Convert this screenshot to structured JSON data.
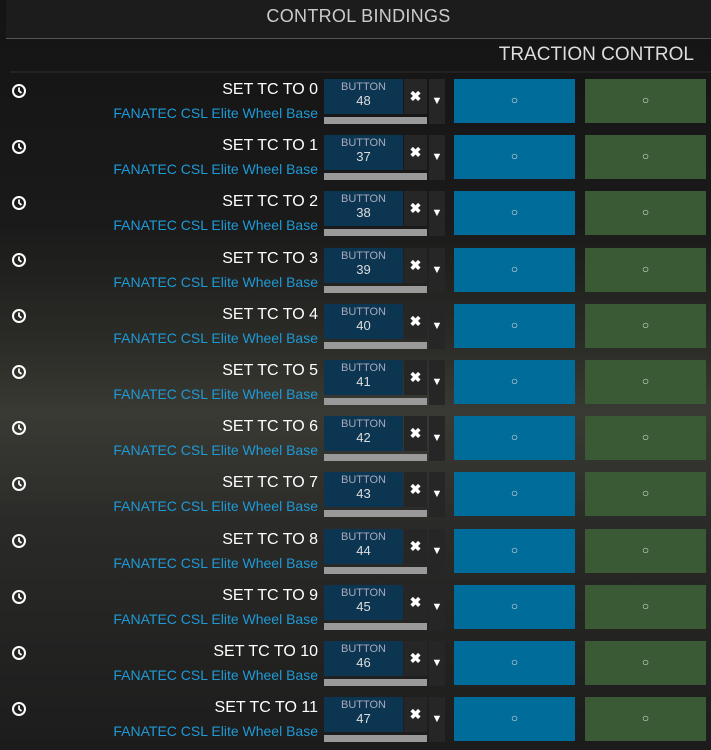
{
  "header": {
    "title": "CONTROL BINDINGS"
  },
  "section": {
    "title": "TRACTION CONTROL"
  },
  "colors": {
    "binding": "#0b3550",
    "primary_slot": "#006c9a",
    "secondary_slot": "#3a5a36",
    "device_text": "#1e9ad6"
  },
  "icons": {
    "history": "clock-history-icon",
    "clear": "x-icon",
    "dropdown": "triangle-down-icon",
    "slot": "circle-icon"
  },
  "rows": [
    {
      "title": "SET TC TO 0",
      "device": "FANATEC CSL Elite Wheel Base",
      "type": "BUTTON",
      "number": "48",
      "clear": "✖",
      "drop": "▼",
      "slot1": "○",
      "slot2": "○"
    },
    {
      "title": "SET TC TO 1",
      "device": "FANATEC CSL Elite Wheel Base",
      "type": "BUTTON",
      "number": "37",
      "clear": "✖",
      "drop": "▼",
      "slot1": "○",
      "slot2": "○"
    },
    {
      "title": "SET TC TO 2",
      "device": "FANATEC CSL Elite Wheel Base",
      "type": "BUTTON",
      "number": "38",
      "clear": "✖",
      "drop": "▼",
      "slot1": "○",
      "slot2": "○"
    },
    {
      "title": "SET TC TO 3",
      "device": "FANATEC CSL Elite Wheel Base",
      "type": "BUTTON",
      "number": "39",
      "clear": "✖",
      "drop": "▼",
      "slot1": "○",
      "slot2": "○"
    },
    {
      "title": "SET TC TO 4",
      "device": "FANATEC CSL Elite Wheel Base",
      "type": "BUTTON",
      "number": "40",
      "clear": "✖",
      "drop": "▼",
      "slot1": "○",
      "slot2": "○"
    },
    {
      "title": "SET TC TO 5",
      "device": "FANATEC CSL Elite Wheel Base",
      "type": "BUTTON",
      "number": "41",
      "clear": "✖",
      "drop": "▼",
      "slot1": "○",
      "slot2": "○"
    },
    {
      "title": "SET TC TO 6",
      "device": "FANATEC CSL Elite Wheel Base",
      "type": "BUTTON",
      "number": "42",
      "clear": "✖",
      "drop": "▼",
      "slot1": "○",
      "slot2": "○"
    },
    {
      "title": "SET TC TO 7",
      "device": "FANATEC CSL Elite Wheel Base",
      "type": "BUTTON",
      "number": "43",
      "clear": "✖",
      "drop": "▼",
      "slot1": "○",
      "slot2": "○"
    },
    {
      "title": "SET TC TO 8",
      "device": "FANATEC CSL Elite Wheel Base",
      "type": "BUTTON",
      "number": "44",
      "clear": "✖",
      "drop": "▼",
      "slot1": "○",
      "slot2": "○"
    },
    {
      "title": "SET TC TO 9",
      "device": "FANATEC CSL Elite Wheel Base",
      "type": "BUTTON",
      "number": "45",
      "clear": "✖",
      "drop": "▼",
      "slot1": "○",
      "slot2": "○"
    },
    {
      "title": "SET TC TO 10",
      "device": "FANATEC CSL Elite Wheel Base",
      "type": "BUTTON",
      "number": "46",
      "clear": "✖",
      "drop": "▼",
      "slot1": "○",
      "slot2": "○"
    },
    {
      "title": "SET TC TO 11",
      "device": "FANATEC CSL Elite Wheel Base",
      "type": "BUTTON",
      "number": "47",
      "clear": "✖",
      "drop": "▼",
      "slot1": "○",
      "slot2": "○"
    }
  ]
}
